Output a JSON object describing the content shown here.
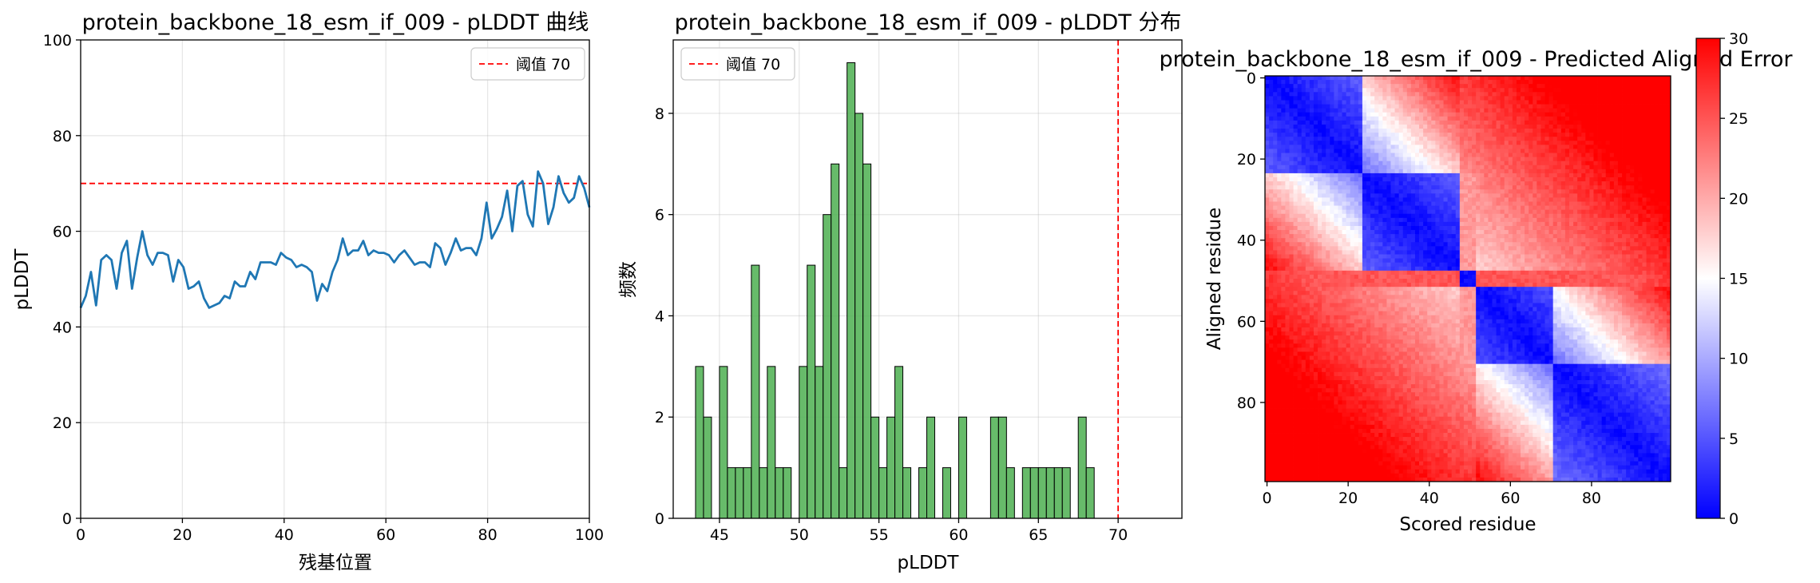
{
  "chart_data": [
    {
      "type": "line",
      "title": "protein_backbone_18_esm_if_009 - pLDDT 曲线",
      "xlabel": "残基位置",
      "ylabel": "pLDDT",
      "xlim": [
        0,
        100
      ],
      "ylim": [
        0,
        100
      ],
      "xticks": [
        0,
        20,
        40,
        60,
        80,
        100
      ],
      "yticks": [
        0,
        20,
        40,
        60,
        80,
        100
      ],
      "grid": true,
      "legend_position": "top-right",
      "color": "#1f77b4",
      "series": [
        {
          "values": [
            44,
            46.5,
            51.5,
            44.5,
            54,
            55,
            54,
            48,
            55.5,
            58,
            48,
            54.5,
            60,
            55,
            53,
            55.5,
            55.5,
            55,
            49.5,
            54,
            52.5,
            48,
            48.5,
            49.5,
            46,
            44,
            44.5,
            45,
            46.5,
            46,
            49.5,
            48.5,
            48.5,
            51.5,
            50,
            53.5,
            53.5,
            53.5,
            53,
            55.5,
            54.5,
            54,
            52.5,
            53,
            52.5,
            51.5,
            45.5,
            49,
            47.5,
            51.5,
            54,
            58.5,
            55,
            56,
            56,
            58,
            55,
            56,
            55.5,
            55.5,
            55,
            53.5,
            55,
            56,
            54.5,
            53,
            53.5,
            53.5,
            52.5,
            57.5,
            56.5,
            53,
            55.5,
            58.5,
            56,
            56.5,
            56.5,
            55,
            58.5,
            66,
            58.5,
            60.5,
            63,
            68.5,
            60,
            69.5,
            70.5,
            63.5,
            61,
            72.5,
            70,
            61.5,
            65,
            71.5,
            68,
            66,
            67,
            71.5,
            69,
            65
          ]
        }
      ],
      "reference_line": {
        "y": 70,
        "color": "#ff0000",
        "label": "阈值 70"
      }
    },
    {
      "type": "bar",
      "title": "protein_backbone_18_esm_if_009 - pLDDT 分布",
      "xlabel": "pLDDT",
      "ylabel": "频数",
      "xlim": [
        42.1,
        74.0
      ],
      "ylim": [
        0,
        9.45
      ],
      "xticks": [
        45,
        50,
        55,
        60,
        65,
        70
      ],
      "yticks": [
        0,
        2,
        4,
        6,
        8
      ],
      "grid": true,
      "legend_position": "top-left",
      "color": "#4caf50",
      "bin_start": 43.5,
      "bin_width": 0.5,
      "values": [
        3,
        2,
        0,
        3,
        1,
        1,
        1,
        5,
        1,
        3,
        1,
        1,
        0,
        3,
        5,
        3,
        6,
        7,
        1,
        9,
        8,
        7,
        2,
        1,
        2,
        3,
        1,
        0,
        1,
        2,
        0,
        1,
        0,
        2,
        0,
        0,
        0,
        2,
        2,
        1,
        0,
        1,
        1,
        1,
        1,
        1,
        1,
        0,
        2,
        1
      ],
      "reference_line": {
        "x": 70,
        "color": "#ff0000",
        "label": "阈值 70"
      }
    },
    {
      "type": "heatmap",
      "title": "protein_backbone_18_esm_if_009 - Predicted Aligned Error",
      "xlabel": "Scored residue",
      "ylabel": "Aligned residue",
      "n": 100,
      "xticks": [
        0,
        20,
        40,
        60,
        80
      ],
      "yticks": [
        0,
        20,
        40,
        60,
        80
      ],
      "colormap": "bwr",
      "vmin": 0,
      "vmax": 30,
      "colorbar_ticks": [
        0,
        5,
        10,
        15,
        20,
        25,
        30
      ],
      "domains": [
        [
          0,
          23
        ],
        [
          24,
          47
        ],
        [
          48,
          51
        ],
        [
          52,
          70
        ],
        [
          71,
          99
        ]
      ]
    }
  ]
}
